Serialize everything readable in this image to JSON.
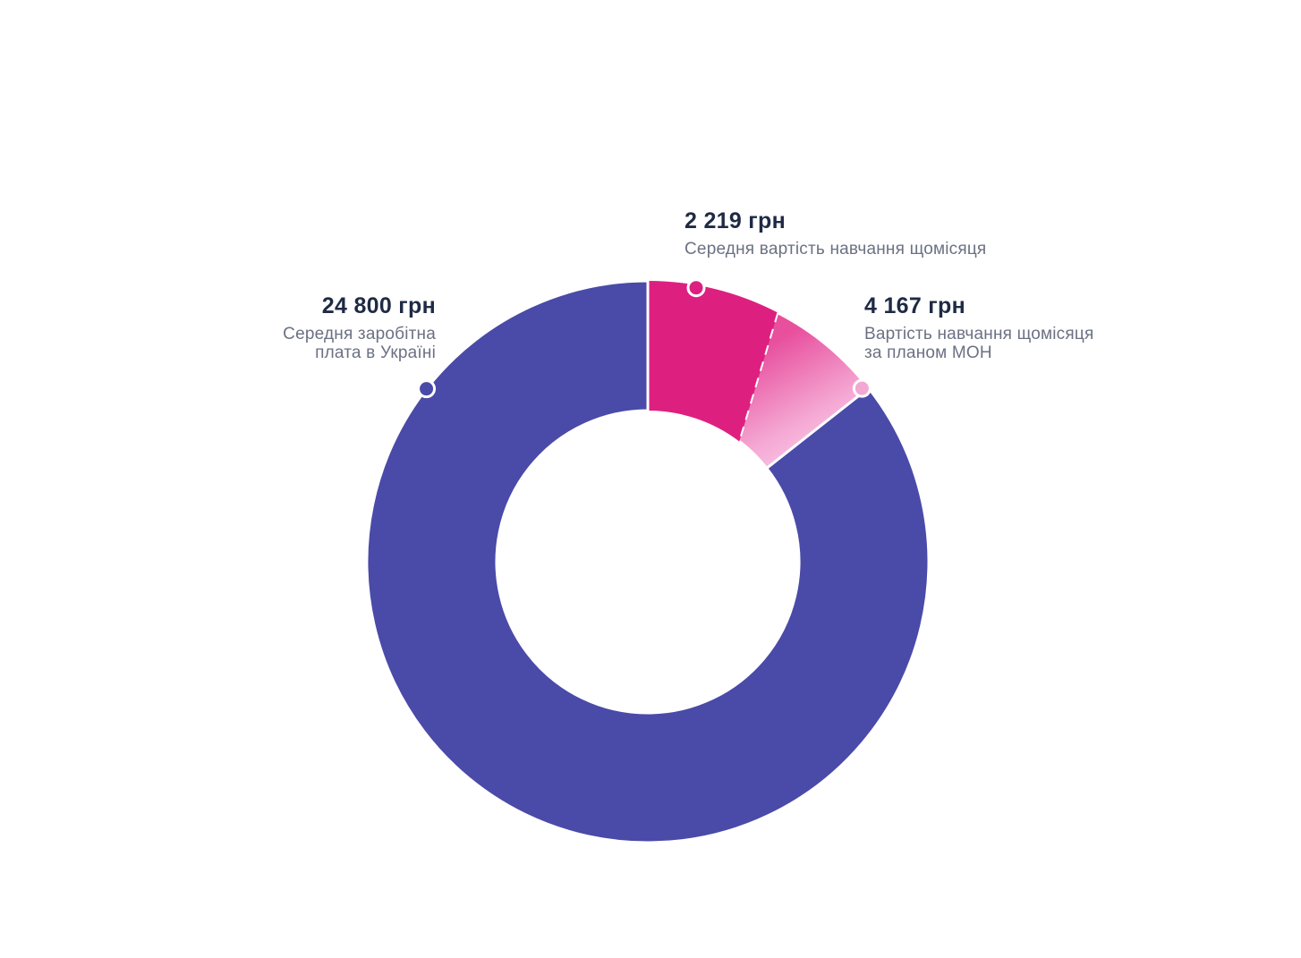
{
  "chart_data": {
    "type": "pie",
    "donut": true,
    "unit": "грн",
    "slices": [
      {
        "key": "salary",
        "value": 24800,
        "value_label": "24 800 грн",
        "label_lines": [
          "Середня заробітна",
          "плата в Україні"
        ],
        "color": "#4a4aa8"
      },
      {
        "key": "avg_tuition",
        "value": 2219,
        "value_label": "2 219 грн",
        "label_lines": [
          "Середня вартість навчання щомісяця"
        ],
        "color": "#dd2080"
      },
      {
        "key": "plan_tuition",
        "value": 4167,
        "value_label": "4 167 грн",
        "label_lines": [
          "Вартість навчання щомісяця",
          "за планом МОН"
        ],
        "color": "#f2a8d3"
      }
    ],
    "notes": "avg_tuition is a portion of plan_tuition; the plan slice spans 4 167 of a 24 800 total and the darker avg part is marked by a dashed divider"
  },
  "labels": {
    "salary_value": "24 800 грн",
    "salary_desc_1": "Середня заробітна",
    "salary_desc_2": "плата в Україні",
    "avg_value": "2 219 грн",
    "avg_desc_1": "Середня вартість навчання щомісяця",
    "plan_value": "4 167 грн",
    "plan_desc_1": "Вартість навчання щомісяця",
    "plan_desc_2": "за планом МОН"
  },
  "colors": {
    "salary": "#4a4aa8",
    "avg": "#dd2080",
    "plan_start": "#e8509e",
    "plan_end": "#ffd8f0",
    "marker_salary": "#4a4aa8",
    "marker_avg": "#dd2080",
    "marker_plan": "#f2a8d3"
  }
}
